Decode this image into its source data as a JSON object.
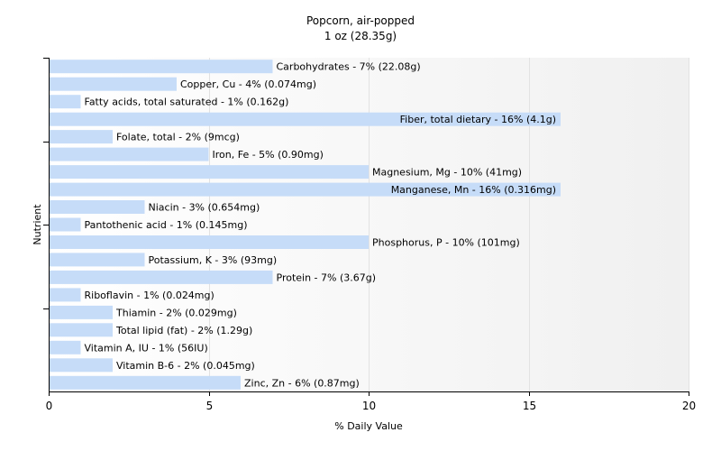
{
  "chart_data": {
    "type": "bar",
    "orientation": "horizontal",
    "title": "Popcorn, air-popped",
    "subtitle": "1 oz (28.35g)",
    "xlabel": "% Daily Value",
    "ylabel": "Nutrient",
    "xlim": [
      0,
      20
    ],
    "xticks": [
      0,
      5,
      10,
      15,
      20
    ],
    "grid": true,
    "bar_color": "#c6dcf8",
    "categories": [
      "Carbohydrates",
      "Copper, Cu",
      "Fatty acids, total saturated",
      "Fiber, total dietary",
      "Folate, total",
      "Iron, Fe",
      "Magnesium, Mg",
      "Manganese, Mn",
      "Niacin",
      "Pantothenic acid",
      "Phosphorus, P",
      "Potassium, K",
      "Protein",
      "Riboflavin",
      "Thiamin",
      "Total lipid (fat)",
      "Vitamin A, IU",
      "Vitamin B-6",
      "Zinc, Zn"
    ],
    "values": [
      7,
      4,
      1,
      16,
      2,
      5,
      10,
      16,
      3,
      1,
      10,
      3,
      7,
      1,
      2,
      2,
      1,
      2,
      6
    ],
    "labels": [
      "Carbohydrates - 7% (22.08g)",
      "Copper, Cu - 4% (0.074mg)",
      "Fatty acids, total saturated - 1% (0.162g)",
      "Fiber, total dietary - 16% (4.1g)",
      "Folate, total - 2% (9mcg)",
      "Iron, Fe - 5% (0.90mg)",
      "Magnesium, Mg - 10% (41mg)",
      "Manganese, Mn - 16% (0.316mg)",
      "Niacin - 3% (0.654mg)",
      "Pantothenic acid - 1% (0.145mg)",
      "Phosphorus, P - 10% (101mg)",
      "Potassium, K - 3% (93mg)",
      "Protein - 7% (3.67g)",
      "Riboflavin - 1% (0.024mg)",
      "Thiamin - 2% (0.029mg)",
      "Total lipid (fat) - 2% (1.29g)",
      "Vitamin A, IU - 1% (56IU)",
      "Vitamin B-6 - 2% (0.045mg)",
      "Zinc, Zn - 6% (0.87mg)"
    ]
  }
}
